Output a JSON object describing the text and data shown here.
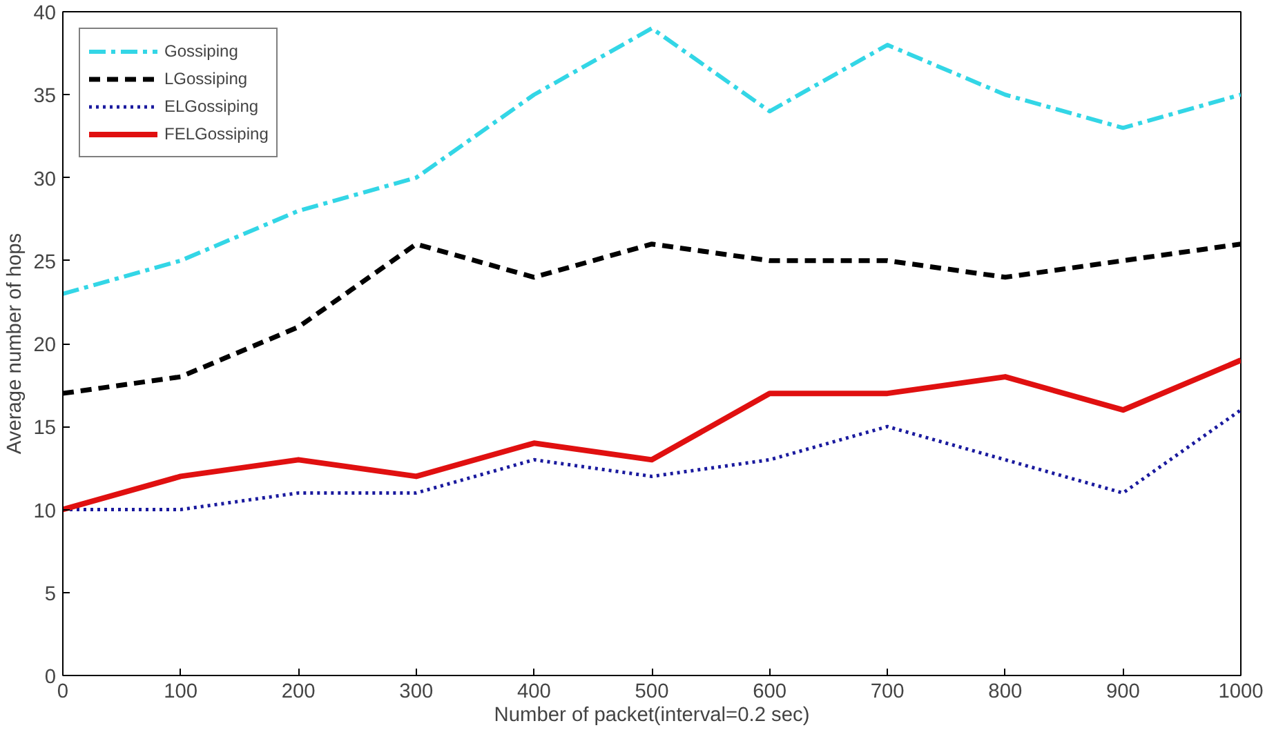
{
  "chart_data": {
    "type": "line",
    "xlabel": "Number of packet(interval=0.2 sec)",
    "ylabel": "Average number of hops",
    "x": [
      0,
      100,
      200,
      300,
      400,
      500,
      600,
      700,
      800,
      900,
      1000
    ],
    "series": [
      {
        "name": "Gossiping",
        "color": "#33d6e6",
        "line_style": "dashdot",
        "values": [
          23,
          25,
          28,
          30,
          35,
          39,
          34,
          38,
          35,
          33,
          35
        ]
      },
      {
        "name": "LGossiping",
        "color": "#000000",
        "line_style": "dashed",
        "values": [
          17,
          18,
          21,
          26,
          24,
          26,
          25,
          25,
          24,
          25,
          26
        ]
      },
      {
        "name": "ELGossiping",
        "color": "#1a1a9e",
        "line_style": "dotted",
        "values": [
          10,
          10,
          11,
          11,
          13,
          12,
          13,
          15,
          13,
          11,
          16
        ]
      },
      {
        "name": "FELGossiping",
        "color": "#e01010",
        "line_style": "solid",
        "values": [
          10,
          12,
          13,
          12,
          14,
          13,
          17,
          17,
          18,
          16,
          19
        ]
      }
    ],
    "xlim": [
      0,
      1000
    ],
    "ylim": [
      0,
      40
    ],
    "xticks": [
      0,
      100,
      200,
      300,
      400,
      500,
      600,
      700,
      800,
      900,
      1000
    ],
    "yticks": [
      0,
      5,
      10,
      15,
      20,
      25,
      30,
      35,
      40
    ],
    "grid": false,
    "legend": "top left"
  }
}
